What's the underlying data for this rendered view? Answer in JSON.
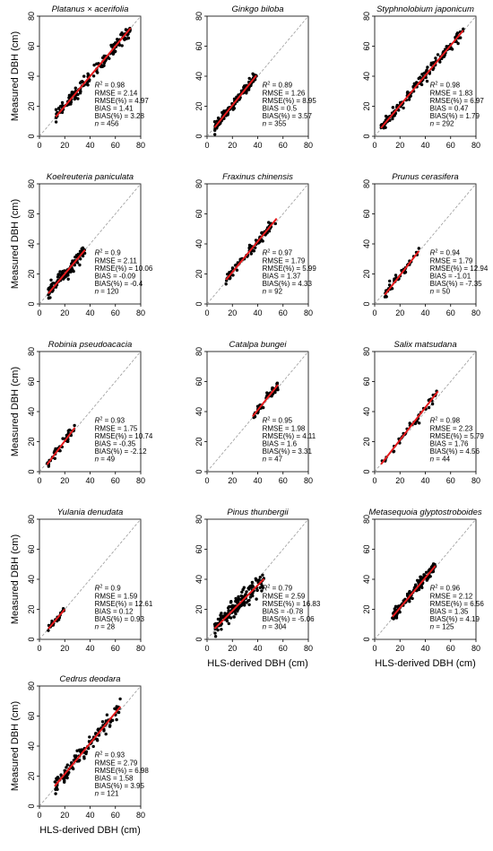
{
  "figure": {
    "xlabel": "HLS-derived DBH (cm)",
    "ylabel": "Measured DBH (cm)",
    "stat_labels": {
      "r2_prefix": "R",
      "r2_sup": "2",
      "rmse": "RMSE",
      "rmse_pct": "RMSE(%)",
      "bias": "BIAS",
      "bias_pct": "BIAS(%)",
      "n": "n"
    },
    "colors": {
      "points": "#000000",
      "fit_line": "#e41a1c",
      "identity_line": "#9a9a9a",
      "axes": "#000000"
    }
  },
  "chart_data": [
    {
      "type": "scatter",
      "title": "Platanus × acerifolia",
      "xlim": [
        0,
        80
      ],
      "ylim": [
        0,
        80
      ],
      "ticks": [
        0,
        20,
        40,
        60,
        80
      ],
      "x_range": [
        13,
        72
      ],
      "slope": 1.0,
      "intercept": 0,
      "spread": 2.2,
      "show_xlabel": false,
      "show_ylabel": true,
      "stats": {
        "r2": "0.98",
        "rmse": "2.14",
        "rmse_pct": "4.97",
        "bias": "1.41",
        "bias_pct": "3.28",
        "n": "456"
      }
    },
    {
      "type": "scatter",
      "title": "Ginkgo biloba",
      "xlim": [
        0,
        80
      ],
      "ylim": [
        0,
        80
      ],
      "ticks": [
        0,
        20,
        40,
        60,
        80
      ],
      "x_range": [
        6,
        39
      ],
      "slope": 1.05,
      "intercept": -0.4,
      "spread": 1.4,
      "show_xlabel": false,
      "show_ylabel": false,
      "stats": {
        "r2": "0.89",
        "rmse": "1.26",
        "rmse_pct": "8.95",
        "bias": "0.5",
        "bias_pct": "3.57",
        "n": "355"
      }
    },
    {
      "type": "scatter",
      "title": "Styphnolobium japonicum",
      "xlim": [
        0,
        80
      ],
      "ylim": [
        0,
        80
      ],
      "ticks": [
        0,
        20,
        40,
        60,
        80
      ],
      "x_range": [
        5,
        70
      ],
      "slope": 1.0,
      "intercept": 0.5,
      "spread": 1.8,
      "show_xlabel": false,
      "show_ylabel": false,
      "stats": {
        "r2": "0.98",
        "rmse": "1.83",
        "rmse_pct": "6.97",
        "bias": "0.47",
        "bias_pct": "1.79",
        "n": "292"
      }
    },
    {
      "type": "scatter",
      "title": "Koelreuteria paniculata",
      "xlim": [
        0,
        80
      ],
      "ylim": [
        0,
        80
      ],
      "ticks": [
        0,
        20,
        40,
        60,
        80
      ],
      "x_range": [
        7,
        36
      ],
      "slope": 1.0,
      "intercept": 0,
      "spread": 2.2,
      "show_xlabel": false,
      "show_ylabel": true,
      "stats": {
        "r2": "0.9",
        "rmse": "2.11",
        "rmse_pct": "10.06",
        "bias": "-0.09",
        "bias_pct": "-0.4",
        "n": "120"
      }
    },
    {
      "type": "scatter",
      "title": "Fraxinus chinensis",
      "xlim": [
        0,
        80
      ],
      "ylim": [
        0,
        80
      ],
      "ticks": [
        0,
        20,
        40,
        60,
        80
      ],
      "x_range": [
        15,
        55
      ],
      "slope": 1.02,
      "intercept": 0.8,
      "spread": 1.6,
      "show_xlabel": false,
      "show_ylabel": false,
      "stats": {
        "r2": "0.97",
        "rmse": "1.79",
        "rmse_pct": "5.99",
        "bias": "1.37",
        "bias_pct": "4.33",
        "n": "92"
      }
    },
    {
      "type": "scatter",
      "title": "Prunus cerasifera",
      "xlim": [
        0,
        80
      ],
      "ylim": [
        0,
        80
      ],
      "ticks": [
        0,
        20,
        40,
        60,
        80
      ],
      "x_range": [
        8,
        35
      ],
      "slope": 1.08,
      "intercept": -2.5,
      "spread": 1.6,
      "show_xlabel": false,
      "show_ylabel": false,
      "stats": {
        "r2": "0.94",
        "rmse": "1.79",
        "rmse_pct": "12.94",
        "bias": "-1.01",
        "bias_pct": "-7.35",
        "n": "50"
      }
    },
    {
      "type": "scatter",
      "title": "Robinia pseudoacacia",
      "xlim": [
        0,
        80
      ],
      "ylim": [
        0,
        80
      ],
      "ticks": [
        0,
        20,
        40,
        60,
        80
      ],
      "x_range": [
        6,
        28
      ],
      "slope": 1.12,
      "intercept": -2.0,
      "spread": 1.5,
      "show_xlabel": false,
      "show_ylabel": true,
      "stats": {
        "r2": "0.93",
        "rmse": "1.75",
        "rmse_pct": "10.74",
        "bias": "-0.35",
        "bias_pct": "-2.12",
        "n": "49"
      }
    },
    {
      "type": "scatter",
      "title": "Catalpa bungei",
      "xlim": [
        0,
        80
      ],
      "ylim": [
        0,
        80
      ],
      "ticks": [
        0,
        20,
        40,
        60,
        80
      ],
      "x_range": [
        36,
        56
      ],
      "slope": 1.05,
      "intercept": -1.0,
      "spread": 1.5,
      "show_xlabel": false,
      "show_ylabel": false,
      "stats": {
        "r2": "0.95",
        "rmse": "1.98",
        "rmse_pct": "4.11",
        "bias": "1.6",
        "bias_pct": "3.31",
        "n": "47"
      }
    },
    {
      "type": "scatter",
      "title": "Salix matsudana",
      "xlim": [
        0,
        80
      ],
      "ylim": [
        0,
        80
      ],
      "ticks": [
        0,
        20,
        40,
        60,
        80
      ],
      "x_range": [
        5,
        50
      ],
      "slope": 1.08,
      "intercept": -0.5,
      "spread": 1.8,
      "show_xlabel": false,
      "show_ylabel": false,
      "stats": {
        "r2": "0.98",
        "rmse": "2.23",
        "rmse_pct": "5.79",
        "bias": "1.76",
        "bias_pct": "4.56",
        "n": "44"
      }
    },
    {
      "type": "scatter",
      "title": "Yulania denudata",
      "xlim": [
        0,
        80
      ],
      "ylim": [
        0,
        80
      ],
      "ticks": [
        0,
        20,
        40,
        60,
        80
      ],
      "x_range": [
        7,
        20
      ],
      "slope": 1.0,
      "intercept": 0,
      "spread": 1.2,
      "show_xlabel": false,
      "show_ylabel": true,
      "stats": {
        "r2": "0.9",
        "rmse": "1.59",
        "rmse_pct": "12.61",
        "bias": "0.12",
        "bias_pct": "0.93",
        "n": "28"
      }
    },
    {
      "type": "scatter",
      "title": "Pinus thunbergii",
      "xlim": [
        0,
        80
      ],
      "ylim": [
        0,
        80
      ],
      "ticks": [
        0,
        20,
        40,
        60,
        80
      ],
      "x_range": [
        6,
        45
      ],
      "slope": 0.85,
      "intercept": 2.0,
      "spread": 3.2,
      "show_xlabel": true,
      "show_ylabel": false,
      "stats": {
        "r2": "0.79",
        "rmse": "2.59",
        "rmse_pct": "16.83",
        "bias": "-0.78",
        "bias_pct": "-5.06",
        "n": "304"
      }
    },
    {
      "type": "scatter",
      "title": "Metasequoia glyptostroboides",
      "xlim": [
        0,
        80
      ],
      "ylim": [
        0,
        80
      ],
      "ticks": [
        0,
        20,
        40,
        60,
        80
      ],
      "x_range": [
        14,
        48
      ],
      "slope": 1.0,
      "intercept": 1.0,
      "spread": 2.0,
      "show_xlabel": true,
      "show_ylabel": false,
      "stats": {
        "r2": "0.96",
        "rmse": "2.12",
        "rmse_pct": "6.56",
        "bias": "1.35",
        "bias_pct": "4.19",
        "n": "125"
      }
    },
    {
      "type": "scatter",
      "title": "Cedrus deodara",
      "xlim": [
        0,
        80
      ],
      "ylim": [
        0,
        80
      ],
      "ticks": [
        0,
        20,
        40,
        60,
        80
      ],
      "x_range": [
        12,
        64
      ],
      "slope": 1.02,
      "intercept": 1.0,
      "spread": 2.5,
      "show_xlabel": true,
      "show_ylabel": true,
      "stats": {
        "r2": "0.93",
        "rmse": "2.79",
        "rmse_pct": "6.98",
        "bias": "1.58",
        "bias_pct": "3.95",
        "n": "121"
      }
    }
  ]
}
